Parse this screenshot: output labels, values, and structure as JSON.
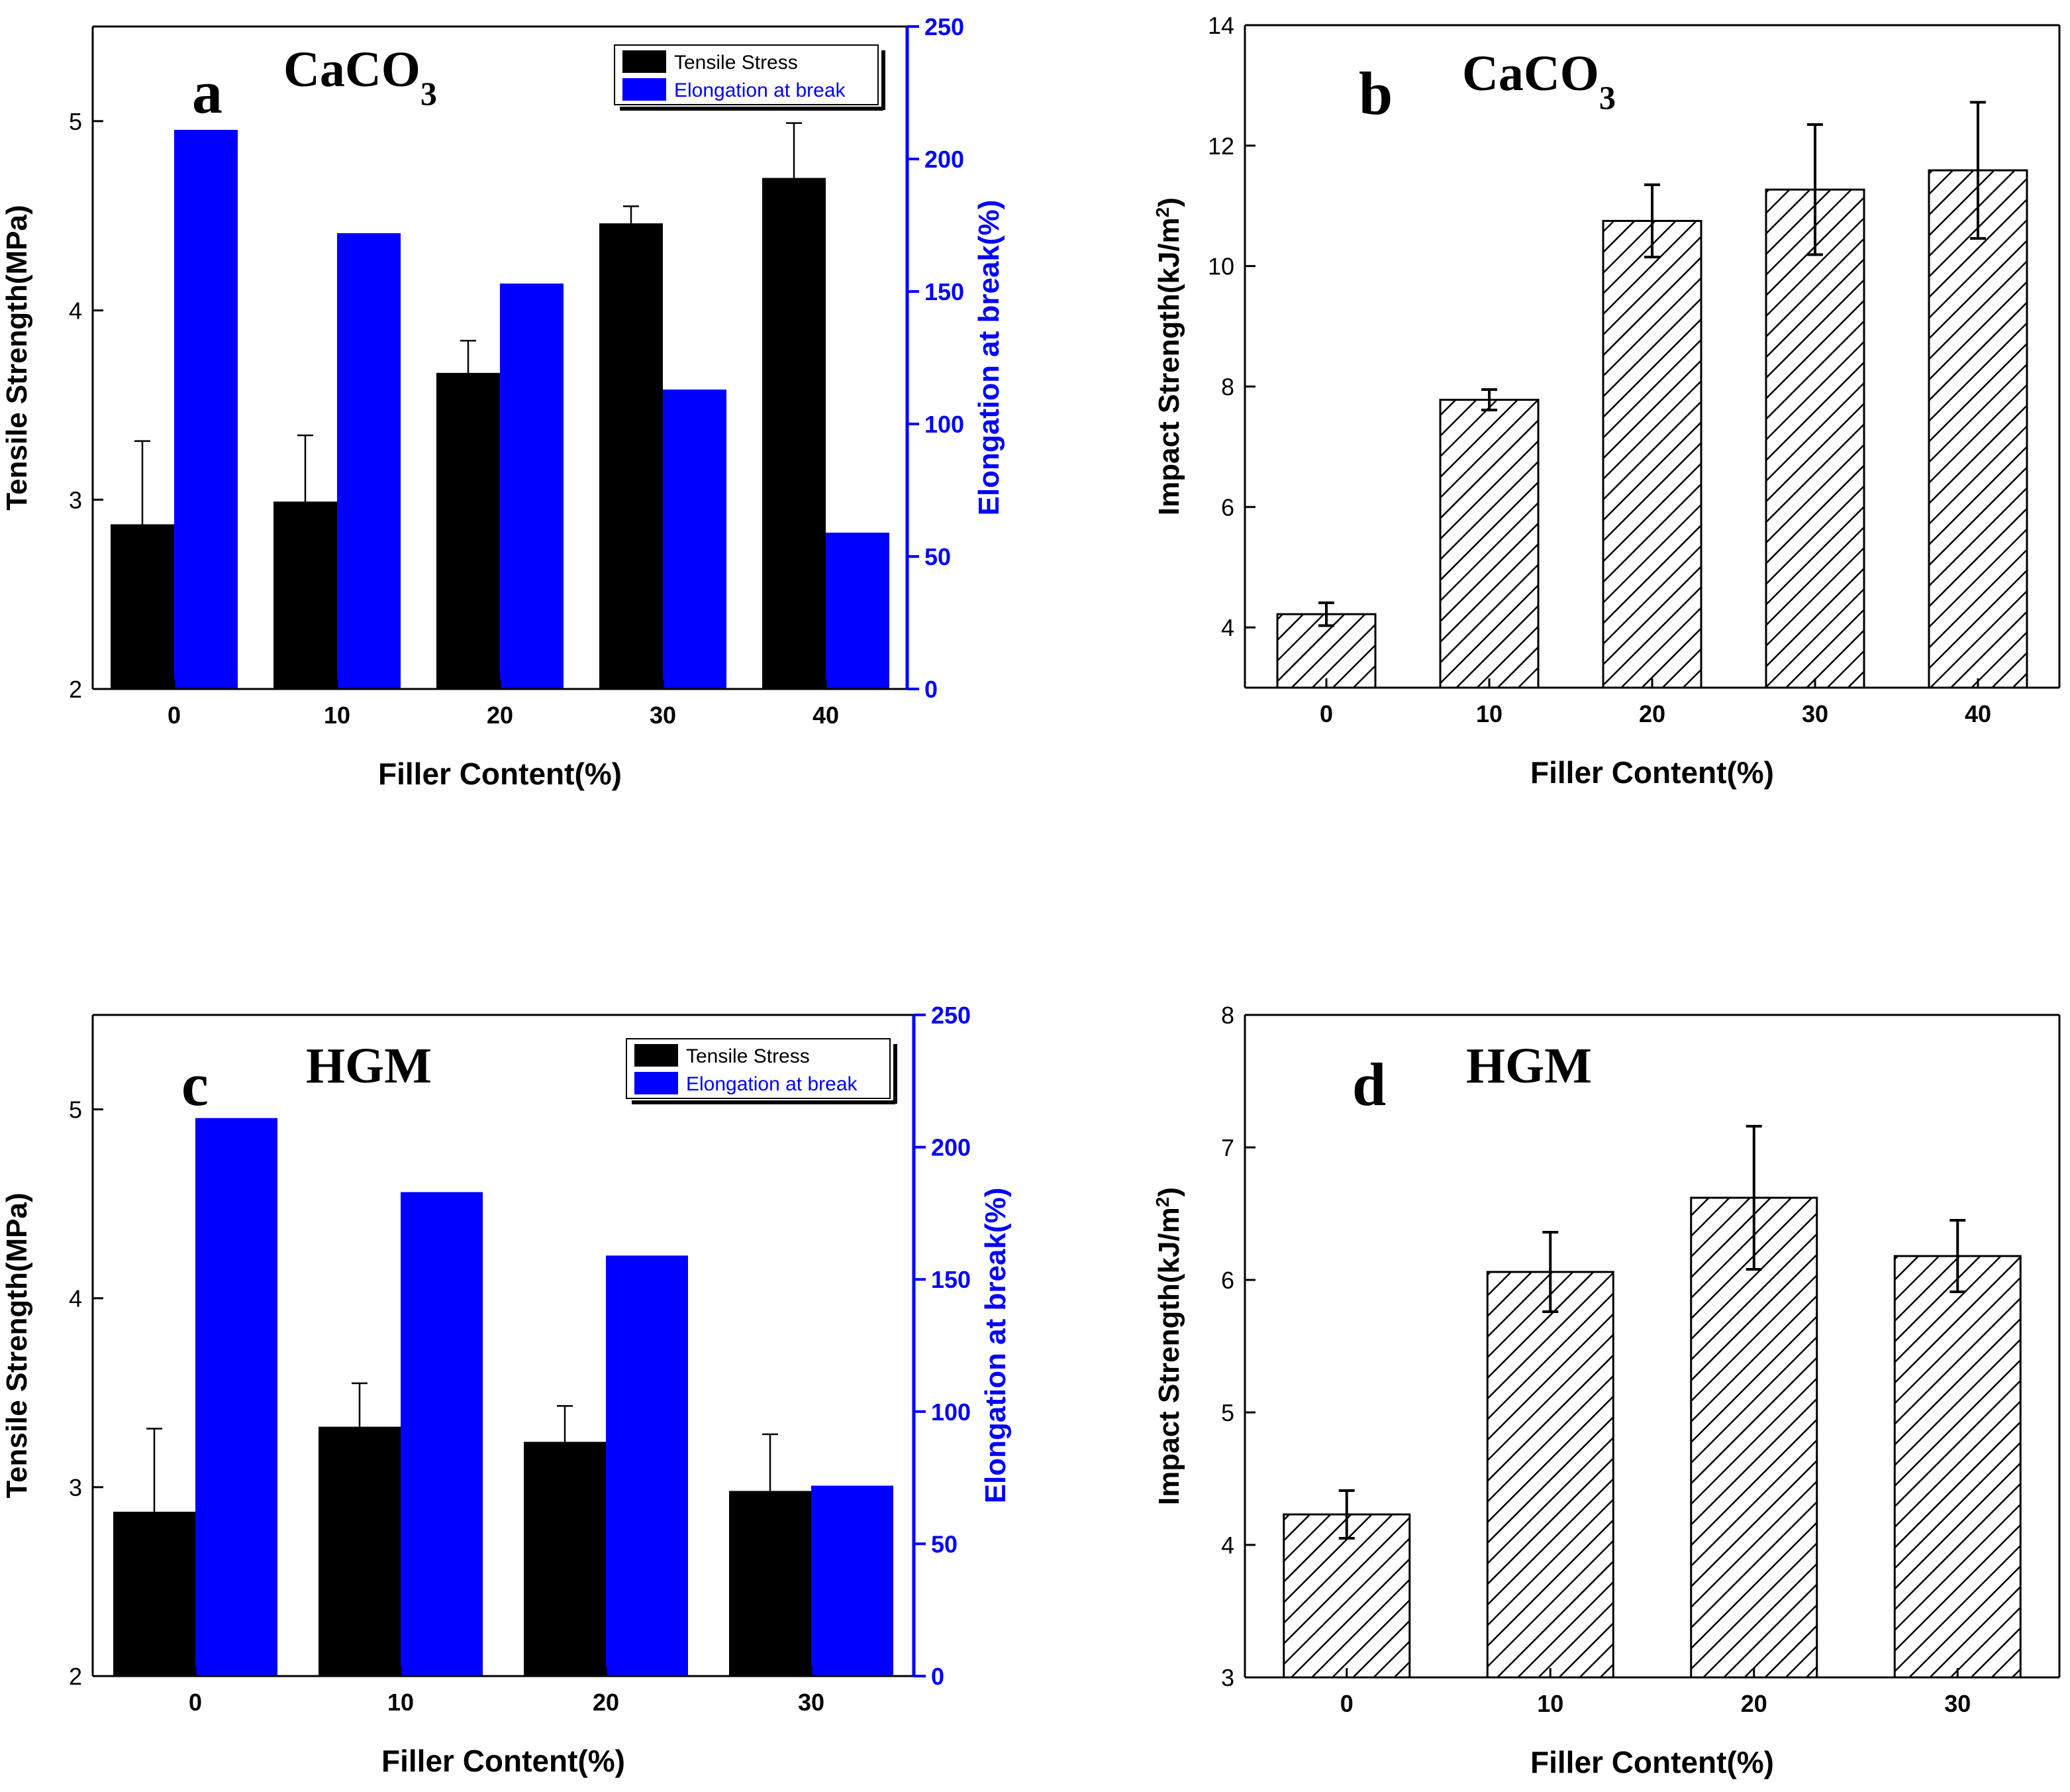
{
  "chart_data": [
    {
      "id": "a",
      "type": "bar",
      "panel_letter": "a",
      "panel_material": "CaCO",
      "panel_subscript": "3",
      "xlabel": "Filler Content(%)",
      "ylabel": "Tensile Strength(MPa)",
      "y2label": "Elongation at break(%)",
      "categories": [
        "0",
        "10",
        "20",
        "30",
        "40"
      ],
      "ylim": [
        2,
        5.5
      ],
      "yticks": [
        "2",
        "3",
        "4",
        "5"
      ],
      "y2lim": [
        0,
        250
      ],
      "y2ticks": [
        "0",
        "50",
        "100",
        "150",
        "200",
        "250"
      ],
      "legend_position": "top-right",
      "series": [
        {
          "name": "Tensile Stress",
          "axis": "left",
          "color": "#000000",
          "values": [
            2.87,
            2.99,
            3.67,
            4.46,
            4.7
          ],
          "errors": [
            0.44,
            0.35,
            0.17,
            0.09,
            0.29
          ]
        },
        {
          "name": "Elongation at break",
          "axis": "right",
          "color": "#0000ff",
          "values": [
            211,
            172,
            153,
            113,
            59
          ]
        }
      ]
    },
    {
      "id": "b",
      "type": "bar",
      "panel_letter": "b",
      "panel_material": "CaCO",
      "panel_subscript": "3",
      "xlabel": "Filler Content(%)",
      "ylabel": "Impact Strength(kJ/m",
      "ylabel_sup": "2",
      "ylabel_end": ")",
      "categories": [
        "0",
        "10",
        "20",
        "30",
        "40"
      ],
      "ylim": [
        3,
        14
      ],
      "yticks": [
        "4",
        "6",
        "8",
        "10",
        "12",
        "14"
      ],
      "series": [
        {
          "name": "Impact Strength",
          "pattern": "hatched",
          "values": [
            4.22,
            7.78,
            10.75,
            11.27,
            11.59
          ],
          "errors": [
            0.19,
            0.17,
            0.6,
            1.08,
            1.13
          ]
        }
      ]
    },
    {
      "id": "c",
      "type": "bar",
      "panel_letter": "c",
      "panel_material": "HGM",
      "xlabel": "Filler Content(%)",
      "ylabel": "Tensile Strength(MPa)",
      "y2label": "Elongation at break(%)",
      "categories": [
        "0",
        "10",
        "20",
        "30"
      ],
      "ylim": [
        2,
        5.5
      ],
      "yticks": [
        "2",
        "3",
        "4",
        "5"
      ],
      "y2lim": [
        0,
        250
      ],
      "y2ticks": [
        "0",
        "50",
        "100",
        "150",
        "200",
        "250"
      ],
      "legend_position": "top-right",
      "series": [
        {
          "name": "Tensile Stress",
          "axis": "left",
          "color": "#000000",
          "values": [
            2.87,
            3.32,
            3.24,
            2.98
          ],
          "errors": [
            0.44,
            0.23,
            0.19,
            0.3
          ]
        },
        {
          "name": "Elongation at break",
          "axis": "right",
          "color": "#0000ff",
          "values": [
            211,
            183,
            159,
            72
          ]
        }
      ]
    },
    {
      "id": "d",
      "type": "bar",
      "panel_letter": "d",
      "panel_material": "HGM",
      "xlabel": "Filler Content(%)",
      "ylabel": "Impact Strength(kJ/m",
      "ylabel_sup": "2",
      "ylabel_end": ")",
      "categories": [
        "0",
        "10",
        "20",
        "30"
      ],
      "ylim": [
        3,
        8
      ],
      "yticks": [
        "3",
        "4",
        "5",
        "6",
        "7",
        "8"
      ],
      "series": [
        {
          "name": "Impact Strength",
          "pattern": "hatched",
          "values": [
            4.23,
            6.06,
            6.62,
            6.18
          ],
          "errors": [
            0.18,
            0.3,
            0.54,
            0.27
          ]
        }
      ]
    }
  ]
}
